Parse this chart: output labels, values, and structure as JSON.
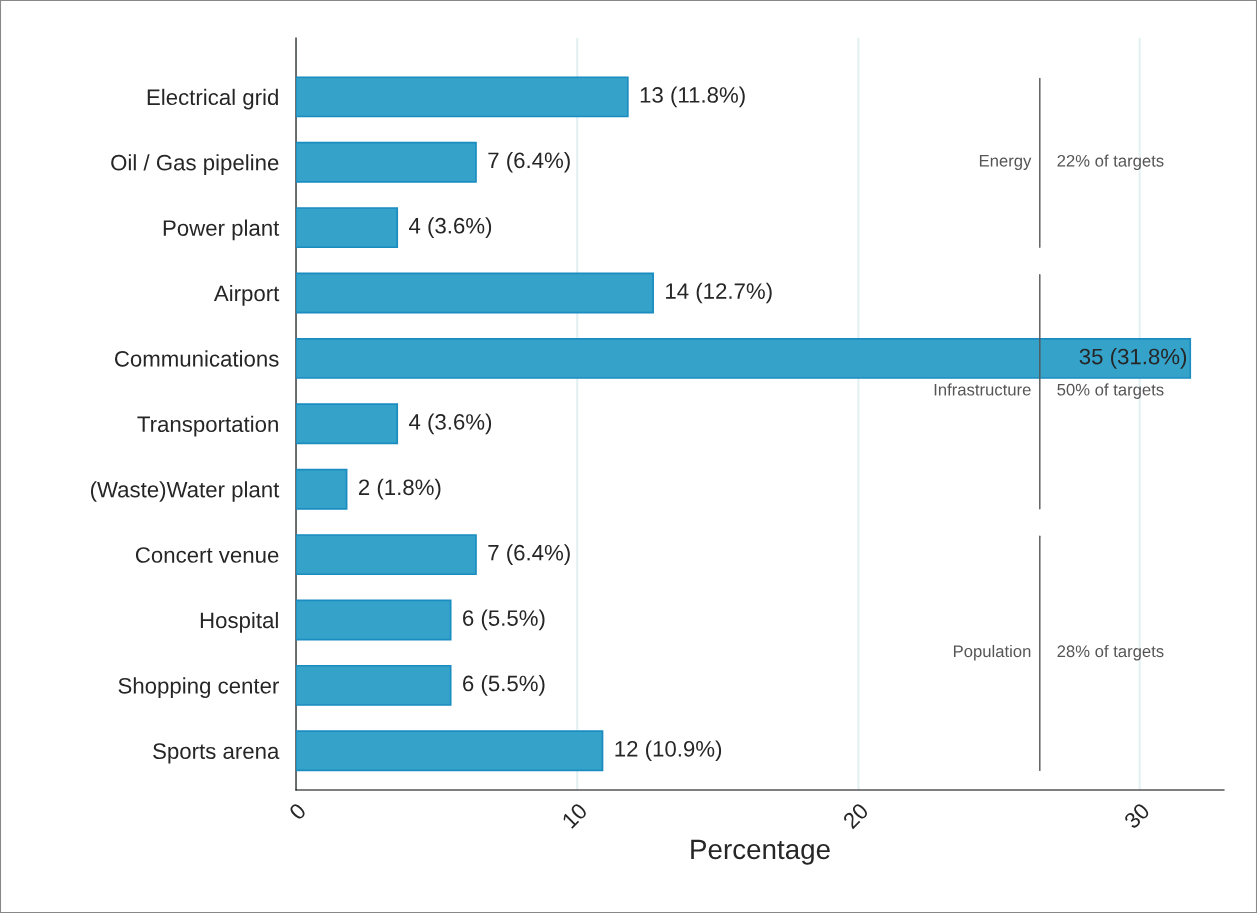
{
  "chart_data": {
    "type": "bar",
    "orientation": "horizontal",
    "xlabel": "Percentage",
    "categories": [
      "Electrical grid",
      "Oil / Gas pipeline",
      "Power plant",
      "Airport",
      "Communications",
      "Transportation",
      "(Waste)Water plant",
      "Concert venue",
      "Hospital",
      "Shopping center",
      "Sports arena"
    ],
    "values": [
      11.8,
      6.4,
      3.6,
      12.7,
      31.8,
      3.6,
      1.8,
      6.4,
      5.5,
      5.5,
      10.9
    ],
    "value_labels": [
      "13 (11.8%)",
      "7 (6.4%)",
      "4 (3.6%)",
      "14 (12.7%)",
      "35 (31.8%)",
      "4 (3.6%)",
      "2 (1.8%)",
      "7 (6.4%)",
      "6 (5.5%)",
      "6 (5.5%)",
      "12 (10.9%)"
    ],
    "color": "#34a2c9",
    "xlim": [
      0,
      33
    ],
    "xticks": [
      0,
      10,
      20,
      30
    ],
    "grid": "x",
    "annotations": [
      "Energy",
      "22% of targets",
      "Infrastructure",
      "50% of targets",
      "Population",
      "28% of targets"
    ]
  }
}
